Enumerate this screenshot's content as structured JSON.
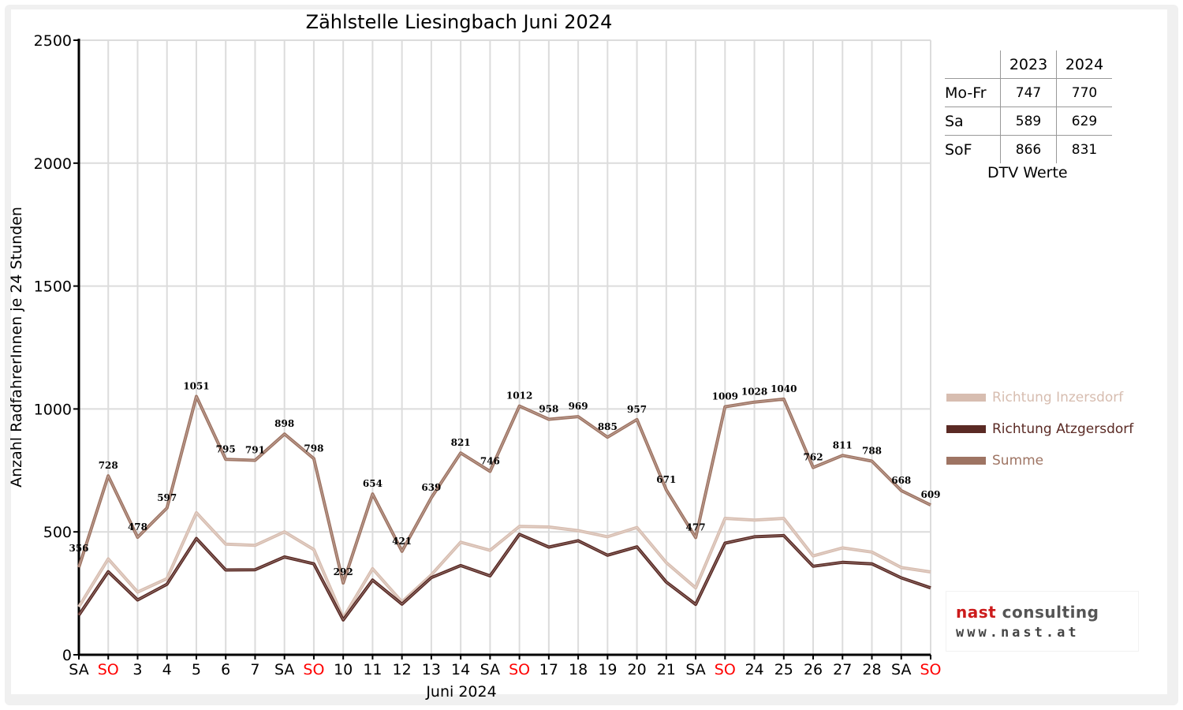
{
  "chart_data": {
    "type": "line",
    "title": "Zählstelle Liesingbach Juni 2024",
    "ylabel": "Anzahl RadfahrerInnen je 24 Stunden",
    "xlabel": "Juni 2024",
    "ylim": [
      0,
      2500
    ],
    "yticks": [
      "0",
      "500",
      "1000",
      "1500",
      "2000",
      "2500"
    ],
    "grid": true,
    "legend_position": "right",
    "categories": [
      "SA",
      "SO",
      "3",
      "4",
      "5",
      "6",
      "7",
      "SA",
      "SO",
      "10",
      "11",
      "12",
      "13",
      "14",
      "SA",
      "SO",
      "17",
      "18",
      "19",
      "20",
      "21",
      "SA",
      "SO",
      "24",
      "25",
      "26",
      "27",
      "28",
      "SA",
      "SO"
    ],
    "sunday_color": "#ff0000",
    "series": [
      {
        "name": "Richtung Inzersdorf",
        "color": "#d7bdb0",
        "values": [
          195,
          390,
          255,
          310,
          578,
          450,
          445,
          500,
          428,
          150,
          350,
          215,
          325,
          458,
          425,
          522,
          520,
          505,
          480,
          518,
          375,
          272,
          555,
          548,
          555,
          402,
          435,
          418,
          355,
          337
        ]
      },
      {
        "name": "Richtung Atzgersdorf",
        "color": "#5a2a24",
        "values": [
          161,
          338,
          223,
          287,
          473,
          345,
          346,
          398,
          370,
          142,
          304,
          206,
          314,
          363,
          321,
          490,
          438,
          464,
          405,
          439,
          296,
          205,
          454,
          480,
          485,
          360,
          376,
          370,
          313,
          272
        ]
      },
      {
        "name": "Summe",
        "color": "#9e7463",
        "values": [
          356,
          728,
          478,
          597,
          1051,
          795,
          791,
          898,
          798,
          292,
          654,
          421,
          639,
          821,
          746,
          1012,
          958,
          969,
          885,
          957,
          671,
          477,
          1009,
          1028,
          1040,
          762,
          811,
          788,
          668,
          609
        ]
      }
    ],
    "data_labels": [
      "356",
      "728",
      "478",
      "597",
      "1051",
      "795",
      "791",
      "898",
      "798",
      "292",
      "654",
      "421",
      "639",
      "821",
      "746",
      "1012",
      "958",
      "969",
      "885",
      "957",
      "671",
      "477",
      "1009",
      "1028",
      "1040",
      "762",
      "811",
      "788",
      "668",
      "609"
    ]
  },
  "dtv_table": {
    "columns": [
      "2023",
      "2024"
    ],
    "rows": [
      {
        "label": "Mo-Fr",
        "v2023": "747",
        "v2024": "770"
      },
      {
        "label": "Sa",
        "v2023": "589",
        "v2024": "629"
      },
      {
        "label": "SoF",
        "v2023": "866",
        "v2024": "831"
      }
    ],
    "caption": "DTV Werte"
  },
  "logo": {
    "name_part1": "nast",
    "name_part2": "consulting",
    "url": "www.nast.at"
  }
}
